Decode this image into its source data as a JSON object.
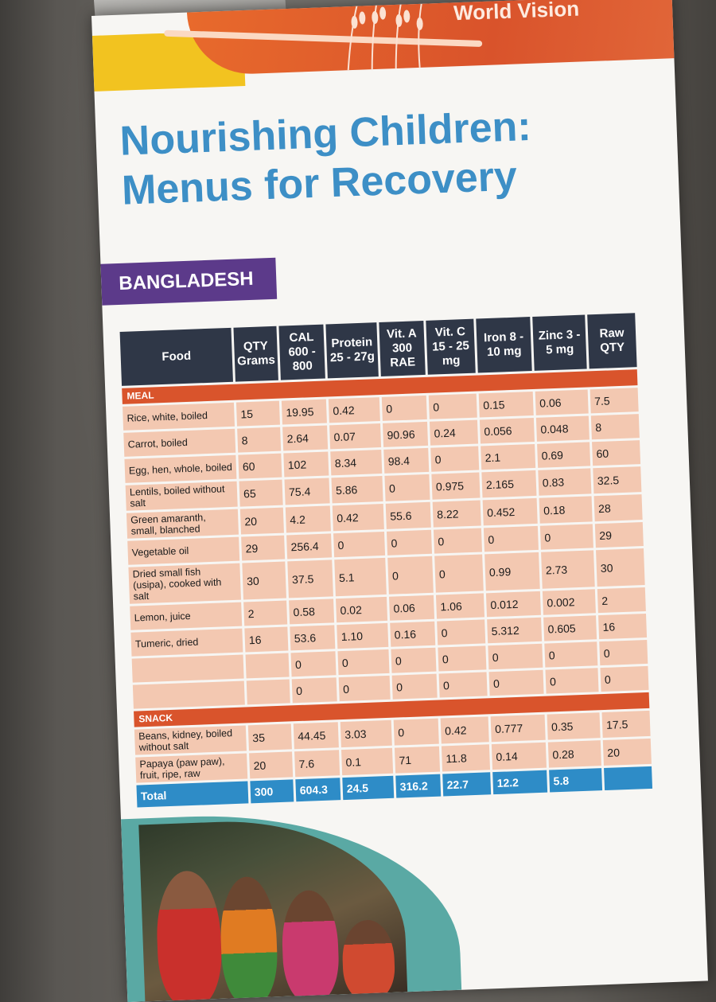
{
  "brand": {
    "name": "World Vision"
  },
  "title": {
    "line1": "Nourishing Children:",
    "line2": "Menus for Recovery"
  },
  "country": "BANGLADESH",
  "colors": {
    "title_blue": "#3d8fc6",
    "country_purple": "#5c3a8a",
    "header_dark": "#2f3747",
    "section_orange": "#d9542c",
    "cell_peach": "#f3c8b1",
    "total_blue": "#2e8cc7"
  },
  "table": {
    "headers": [
      "Food",
      "QTY Grams",
      "CAL 600 - 800",
      "Protein 25 - 27g",
      "Vit. A 300 RAE",
      "Vit. C 15 - 25 mg",
      "Iron 8 - 10 mg",
      "Zinc 3 - 5 mg",
      "Raw QTY"
    ],
    "meal_label": "MEAL",
    "meal_rows": [
      [
        "Rice, white, boiled",
        "15",
        "19.95",
        "0.42",
        "0",
        "0",
        "0.15",
        "0.06",
        "7.5"
      ],
      [
        "Carrot, boiled",
        "8",
        "2.64",
        "0.07",
        "90.96",
        "0.24",
        "0.056",
        "0.048",
        "8"
      ],
      [
        "Egg, hen, whole, boiled",
        "60",
        "102",
        "8.34",
        "98.4",
        "0",
        "2.1",
        "0.69",
        "60"
      ],
      [
        "Lentils, boiled without salt",
        "65",
        "75.4",
        "5.86",
        "0",
        "0.975",
        "2.165",
        "0.83",
        "32.5"
      ],
      [
        "Green amaranth, small, blanched",
        "20",
        "4.2",
        "0.42",
        "55.6",
        "8.22",
        "0.452",
        "0.18",
        "28"
      ],
      [
        "Vegetable oil",
        "29",
        "256.4",
        "0",
        "0",
        "0",
        "0",
        "0",
        "29"
      ],
      [
        "Dried small fish (usipa), cooked with salt",
        "30",
        "37.5",
        "5.1",
        "0",
        "0",
        "0.99",
        "2.73",
        "30"
      ],
      [
        "Lemon, juice",
        "2",
        "0.58",
        "0.02",
        "0.06",
        "1.06",
        "0.012",
        "0.002",
        "2"
      ],
      [
        "Tumeric, dried",
        "16",
        "53.6",
        "1.10",
        "0.16",
        "0",
        "5.312",
        "0.605",
        "16"
      ],
      [
        "",
        "",
        "0",
        "0",
        "0",
        "0",
        "0",
        "0",
        "0"
      ],
      [
        "",
        "",
        "0",
        "0",
        "0",
        "0",
        "0",
        "0",
        "0"
      ]
    ],
    "snack_label": "SNACK",
    "snack_rows": [
      [
        "Beans, kidney, boiled without salt",
        "35",
        "44.45",
        "3.03",
        "0",
        "0.42",
        "0.777",
        "0.35",
        "17.5"
      ],
      [
        "Papaya (paw paw), fruit, ripe, raw",
        "20",
        "7.6",
        "0.1",
        "71",
        "11.8",
        "0.14",
        "0.28",
        "20"
      ]
    ],
    "total_label": "Total",
    "total_row": [
      "300",
      "604.3",
      "24.5",
      "316.2",
      "22.7",
      "12.2",
      "5.8",
      ""
    ]
  },
  "photo": {
    "subject": "women-and-children-group-photo"
  }
}
